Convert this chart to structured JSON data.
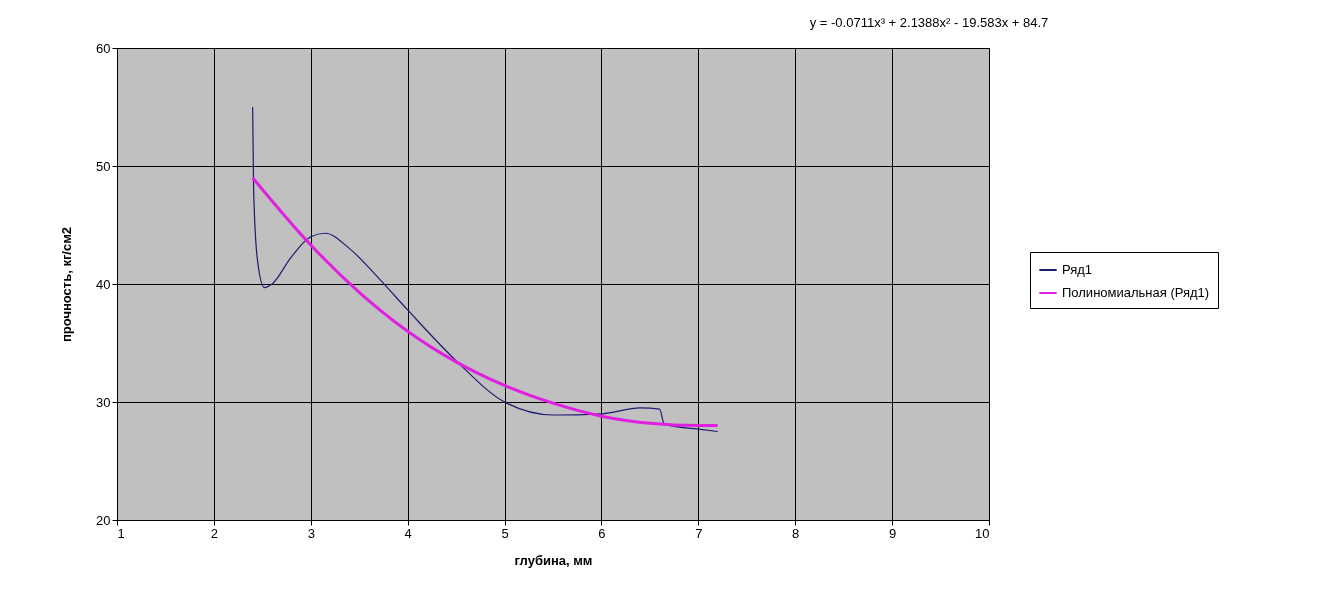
{
  "chart_data": {
    "type": "line",
    "xlabel": "глубина, мм",
    "ylabel": "прочность, кг/см2",
    "xlim": [
      1,
      10
    ],
    "xticks": [
      1,
      2,
      3,
      4,
      5,
      6,
      7,
      8,
      9,
      10
    ],
    "ylim": [
      20,
      60
    ],
    "yticks": [
      20,
      30,
      40,
      50,
      60
    ],
    "grid": true,
    "legend": "right",
    "annotations": [
      "y = -0.0711x³ + 2.1388x² - 19.583x + 84.7"
    ],
    "series": [
      {
        "name": "Ряд1",
        "color": "#1c1c70",
        "x": [
          2.4,
          2.41,
          2.45,
          2.52,
          2.6,
          2.8,
          3.0,
          3.15,
          3.4,
          3.7,
          4.0,
          4.5,
          5.0,
          5.5,
          6.0,
          6.4,
          6.6,
          6.65,
          7.0,
          7.2
        ],
        "values": [
          55,
          48,
          42,
          39.7,
          40,
          42.3,
          44,
          44.3,
          43,
          40.5,
          37.8,
          33.5,
          30,
          28.9,
          29,
          29.5,
          29.4,
          28.1,
          27.7,
          27.5
        ]
      },
      {
        "name": "Полиномиальная (Ряд1)",
        "color": "#e020e0",
        "type": "line",
        "x": [
          2.4,
          3,
          3.5,
          4,
          4.5,
          5,
          5.5,
          6,
          6.5,
          7,
          7.2
        ],
        "values": [
          49.0,
          43.3,
          39.3,
          36.0,
          33.4,
          31.4,
          29.9,
          28.8,
          28.2,
          28.0,
          28.0
        ]
      }
    ]
  }
}
